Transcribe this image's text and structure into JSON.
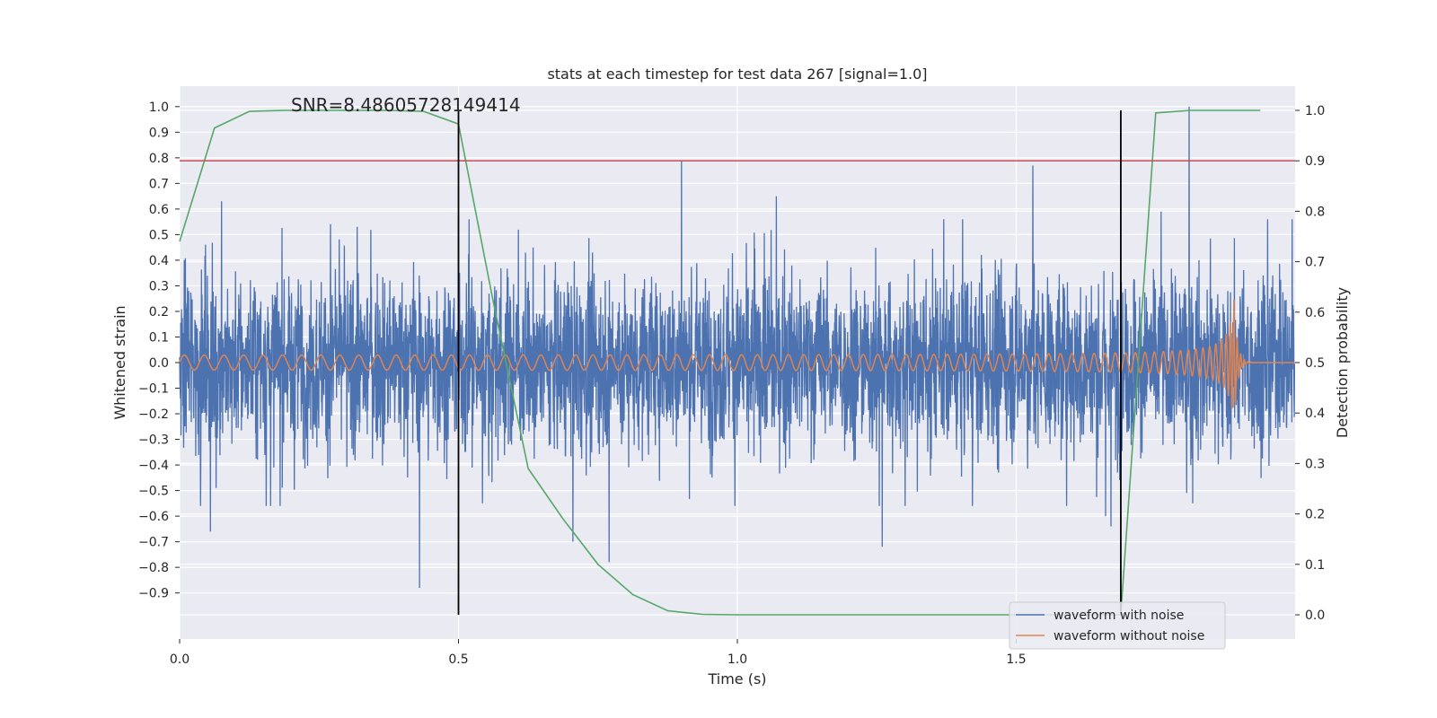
{
  "chart_data": {
    "type": "line",
    "title": "stats at each timestep for test data 267 [signal=1.0]",
    "annotation": "SNR=8.48605728149414",
    "xlabel": "Time (s)",
    "ylabel": "Whitened strain",
    "y2label": "Detection probability",
    "xlim": [
      0.0,
      2.0
    ],
    "ylim": [
      -1.08,
      1.08
    ],
    "y2lim": [
      -0.048,
      1.048
    ],
    "x_ticks": [
      "0.0",
      "0.5",
      "1.0",
      "1.5"
    ],
    "y_ticks": [
      "−0.9",
      "−0.8",
      "−0.7",
      "−0.6",
      "−0.5",
      "−0.4",
      "−0.3",
      "−0.2",
      "−0.1",
      "0.0",
      "0.1",
      "0.2",
      "0.3",
      "0.4",
      "0.5",
      "0.6",
      "0.7",
      "0.8",
      "0.9",
      "1.0"
    ],
    "y2_ticks": [
      "0.0",
      "0.1",
      "0.2",
      "0.3",
      "0.4",
      "0.5",
      "0.6",
      "0.7",
      "0.8",
      "0.9",
      "1.0"
    ],
    "grid": true,
    "legend_position": "lower-right",
    "series": [
      {
        "name": "waveform with noise",
        "axis": "left",
        "color": "#4c72b0",
        "kind": "noise",
        "sample_rate": 2048,
        "t_start": 0.0,
        "t_end": 2.0,
        "typical_amplitude": 0.17,
        "spikes": [
          {
            "t": 0.43,
            "y": -0.88
          },
          {
            "t": 0.055,
            "y": -0.66
          },
          {
            "t": 0.075,
            "y": 0.63
          },
          {
            "t": 0.5,
            "y": 0.57
          },
          {
            "t": 0.705,
            "y": -0.7
          },
          {
            "t": 0.77,
            "y": -0.78
          },
          {
            "t": 0.9,
            "y": 0.79
          },
          {
            "t": 1.07,
            "y": 0.65
          },
          {
            "t": 1.26,
            "y": -0.72
          },
          {
            "t": 1.53,
            "y": 0.77
          },
          {
            "t": 1.66,
            "y": -0.6
          },
          {
            "t": 1.67,
            "y": -0.64
          },
          {
            "t": 1.81,
            "y": 1.0
          },
          {
            "t": 1.76,
            "y": 0.59
          }
        ]
      },
      {
        "name": "waveform without noise",
        "axis": "left",
        "color": "#dd8452",
        "kind": "chirp",
        "t_start": 0.0,
        "t_merger": 1.89,
        "t_end": 2.0,
        "f_start": 28,
        "f_end": 160,
        "amp_start": 0.028,
        "amp_peak": 0.27
      },
      {
        "name": "",
        "axis": "right",
        "color": "#55a868",
        "kind": "line",
        "x": [
          0.0,
          0.0625,
          0.125,
          0.1875,
          0.25,
          0.3125,
          0.375,
          0.4375,
          0.5,
          0.5625,
          0.625,
          0.6875,
          0.75,
          0.8125,
          0.875,
          0.9375,
          1.0,
          1.0625,
          1.125,
          1.1875,
          1.25,
          1.3125,
          1.375,
          1.4375,
          1.5,
          1.5625,
          1.625,
          1.6875,
          1.75,
          1.8125,
          1.875,
          1.9375
        ],
        "y": [
          0.74,
          0.965,
          0.998,
          1.0,
          1.0,
          1.0,
          1.0,
          0.998,
          0.973,
          0.62,
          0.29,
          0.19,
          0.1,
          0.04,
          0.008,
          0.001,
          0.0,
          0.0,
          0.0,
          0.0,
          0.0,
          0.0,
          0.0,
          0.0,
          0.0,
          0.0,
          0.0,
          0.0,
          0.995,
          1.0,
          1.0,
          1.0
        ]
      }
    ],
    "hlines": [
      {
        "axis": "right",
        "y": 0.9,
        "color": "#c44e52"
      }
    ],
    "vlines": [
      {
        "x": 0.5,
        "axis": "right",
        "y_from": 0.0,
        "y_to": 1.0,
        "color": "#000000"
      },
      {
        "x": 1.6875,
        "axis": "right",
        "y_from": 0.0,
        "y_to": 1.0,
        "color": "#000000"
      }
    ],
    "plot_background": "#eaeaf2",
    "grid_color": "#ffffff",
    "text_color": "#262626"
  }
}
